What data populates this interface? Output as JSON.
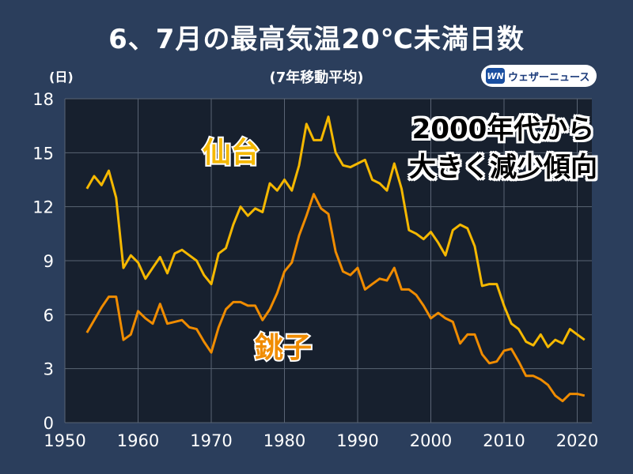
{
  "header": {
    "title": "6、7月の最高気温20℃未満日数",
    "subtitle": "(7年移動平均)",
    "unit": "(日)"
  },
  "logo": {
    "mark": "WN",
    "text": "ウェザーニュース"
  },
  "annotation": {
    "line1": "2000年代から",
    "line2": "大きく減少傾向"
  },
  "colors": {
    "background": "#2b3e5c",
    "plot_bg": "#17202e",
    "grid": "#5a6474",
    "sendai": "#f5b800",
    "choshi": "#f08c00"
  },
  "chart_data": {
    "type": "line",
    "xlim": [
      1950,
      2022
    ],
    "ylim": [
      0,
      18
    ],
    "xticks": [
      1950,
      1960,
      1970,
      1980,
      1990,
      2000,
      2010,
      2020
    ],
    "yticks": [
      0,
      3,
      6,
      9,
      12,
      15,
      18
    ],
    "grid": true,
    "series": [
      {
        "name": "仙台",
        "x": [
          1953,
          1954,
          1955,
          1956,
          1957,
          1958,
          1959,
          1960,
          1961,
          1962,
          1963,
          1964,
          1965,
          1966,
          1967,
          1968,
          1969,
          1970,
          1971,
          1972,
          1973,
          1974,
          1975,
          1976,
          1977,
          1978,
          1979,
          1980,
          1981,
          1982,
          1983,
          1984,
          1985,
          1986,
          1987,
          1988,
          1989,
          1990,
          1991,
          1992,
          1993,
          1994,
          1995,
          1996,
          1997,
          1998,
          1999,
          2000,
          2001,
          2002,
          2003,
          2004,
          2005,
          2006,
          2007,
          2008,
          2009,
          2010,
          2011,
          2012,
          2013,
          2014,
          2015,
          2016,
          2017,
          2018,
          2019,
          2020,
          2021
        ],
        "values": [
          13.0,
          13.7,
          13.2,
          14.0,
          12.5,
          8.6,
          9.3,
          8.9,
          8.0,
          8.6,
          9.2,
          8.3,
          9.4,
          9.6,
          9.3,
          9.0,
          8.2,
          7.7,
          9.4,
          9.7,
          11.0,
          12.0,
          11.5,
          11.9,
          11.7,
          13.3,
          12.9,
          13.5,
          12.9,
          14.3,
          16.6,
          15.7,
          15.7,
          17.0,
          15.0,
          14.3,
          14.2,
          14.4,
          14.6,
          13.5,
          13.3,
          12.9,
          14.4,
          13.0,
          10.7,
          10.5,
          10.2,
          10.6,
          10.0,
          9.3,
          10.7,
          11.0,
          10.8,
          9.8,
          7.6,
          7.7,
          7.7,
          6.5,
          5.5,
          5.2,
          4.5,
          4.3,
          4.9,
          4.2,
          4.6,
          4.4,
          5.2,
          4.9,
          4.6
        ]
      },
      {
        "name": "銚子",
        "x": [
          1953,
          1954,
          1955,
          1956,
          1957,
          1958,
          1959,
          1960,
          1961,
          1962,
          1963,
          1964,
          1965,
          1966,
          1967,
          1968,
          1969,
          1970,
          1971,
          1972,
          1973,
          1974,
          1975,
          1976,
          1977,
          1978,
          1979,
          1980,
          1981,
          1982,
          1983,
          1984,
          1985,
          1986,
          1987,
          1988,
          1989,
          1990,
          1991,
          1992,
          1993,
          1994,
          1995,
          1996,
          1997,
          1998,
          1999,
          2000,
          2001,
          2002,
          2003,
          2004,
          2005,
          2006,
          2007,
          2008,
          2009,
          2010,
          2011,
          2012,
          2013,
          2014,
          2015,
          2016,
          2017,
          2018,
          2019,
          2020,
          2021
        ],
        "values": [
          5.0,
          5.7,
          6.4,
          7.0,
          7.0,
          4.6,
          4.9,
          6.2,
          5.8,
          5.5,
          6.6,
          5.5,
          5.6,
          5.7,
          5.3,
          5.2,
          4.5,
          3.9,
          5.3,
          6.3,
          6.7,
          6.7,
          6.5,
          6.5,
          5.7,
          6.3,
          7.2,
          8.4,
          8.9,
          10.4,
          11.5,
          12.7,
          11.9,
          11.6,
          9.5,
          8.4,
          8.2,
          8.6,
          7.4,
          7.7,
          8.0,
          7.9,
          8.6,
          7.4,
          7.4,
          7.1,
          6.5,
          5.8,
          6.1,
          5.8,
          5.6,
          4.4,
          4.9,
          4.9,
          3.8,
          3.3,
          3.4,
          4.0,
          4.1,
          3.4,
          2.6,
          2.6,
          2.4,
          2.1,
          1.5,
          1.2,
          1.6,
          1.6,
          1.5
        ]
      }
    ],
    "series_labels": [
      "仙台",
      "銚子"
    ]
  }
}
